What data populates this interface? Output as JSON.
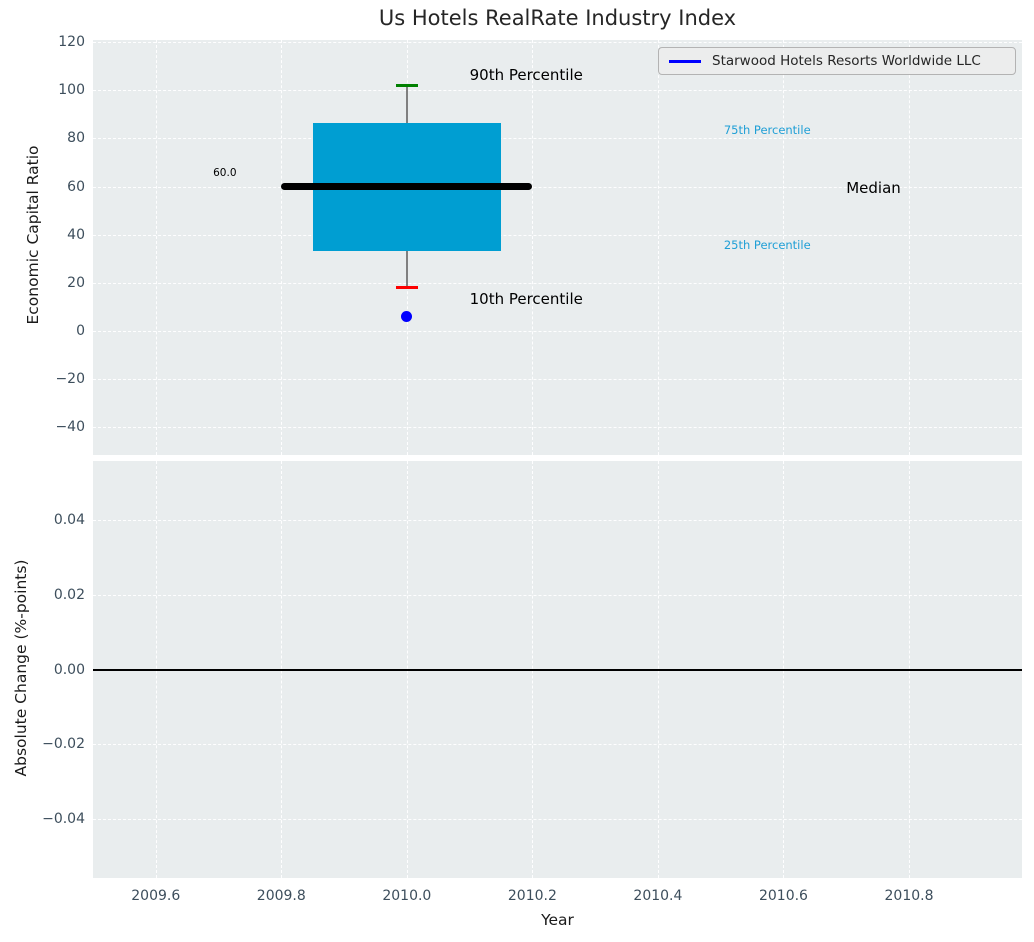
{
  "figure": {
    "title": "Us Hotels RealRate Industry Index"
  },
  "legend": {
    "label": "Starwood Hotels Resorts Worldwide LLC",
    "line_color": "#0000ff",
    "position": "upper right"
  },
  "chart_data": [
    {
      "type": "boxplot",
      "title": "Us Hotels RealRate Industry Index",
      "ylabel": "Economic Capital Ratio",
      "xlabel": "",
      "grid": true,
      "xlim": [
        2009.5,
        2010.98
      ],
      "ylim": [
        -51.6,
        120.9
      ],
      "xticks": [
        2009.6,
        2009.8,
        2010.0,
        2010.2,
        2010.4,
        2010.6,
        2010.8
      ],
      "yticks": [
        120,
        100,
        80,
        60,
        40,
        20,
        0,
        -20,
        -40
      ],
      "ytick_labels": [
        "120",
        "100",
        "80",
        "60",
        "40",
        "20",
        "0",
        "−20",
        "−40"
      ],
      "show_xtick_labels": false,
      "box": {
        "x": 2010.0,
        "p10": 18.0,
        "p25": 33.0,
        "median": 60.0,
        "p75": 86.5,
        "p90": 102.0,
        "median_label": "60.0",
        "box_half_width": 0.15,
        "median_half_width": 0.2,
        "cap_half_width": 0.017,
        "fill_color": "#009ed2",
        "median_color": "#000000",
        "whisker_color": "#808080",
        "upper_cap_color": "#008000",
        "lower_cap_color": "#fd0000"
      },
      "company_point": {
        "name": "Starwood Hotels Resorts Worldwide LLC",
        "x": 2010.0,
        "y": 6.0,
        "color": "#0000ff",
        "marker": "circle"
      },
      "annotations": [
        {
          "text": "90th Percentile",
          "x": 2010.1,
          "y": 106.5,
          "color": "#000000",
          "size": 15,
          "ha": "left"
        },
        {
          "text": "75th Percentile",
          "x": 2010.505,
          "y": 83.5,
          "color": "#1f9fd6",
          "size": 11.5,
          "ha": "left"
        },
        {
          "text": "Median",
          "x": 2010.7,
          "y": 59.5,
          "color": "#000000",
          "size": 15,
          "ha": "left"
        },
        {
          "text": "25th Percentile",
          "x": 2010.505,
          "y": 35.5,
          "color": "#1f9fd6",
          "size": 11.5,
          "ha": "left"
        },
        {
          "text": "10th Percentile",
          "x": 2010.1,
          "y": 13.2,
          "color": "#000000",
          "size": 15,
          "ha": "left"
        },
        {
          "text": "60.0",
          "x": 2009.71,
          "y": 65.5,
          "color": "#000000",
          "size": 10.5,
          "ha": "center"
        }
      ]
    },
    {
      "type": "line",
      "title": "",
      "ylabel": "Absolute Change (%-points)",
      "xlabel": "Year",
      "grid": true,
      "xlim": [
        2009.5,
        2010.98
      ],
      "ylim": [
        -0.0557,
        0.0557
      ],
      "xticks": [
        2009.6,
        2009.8,
        2010.0,
        2010.2,
        2010.4,
        2010.6,
        2010.8
      ],
      "xtick_labels": [
        "2009.6",
        "2009.8",
        "2010.0",
        "2010.2",
        "2010.4",
        "2010.6",
        "2010.8"
      ],
      "yticks": [
        0.04,
        0.02,
        0.0,
        -0.02,
        -0.04
      ],
      "ytick_labels": [
        "0.04",
        "0.02",
        "0.00",
        "−0.02",
        "−0.04"
      ],
      "show_xtick_labels": true,
      "zero_line_y": 0.0,
      "zero_line_color": "#000000",
      "series": []
    }
  ]
}
